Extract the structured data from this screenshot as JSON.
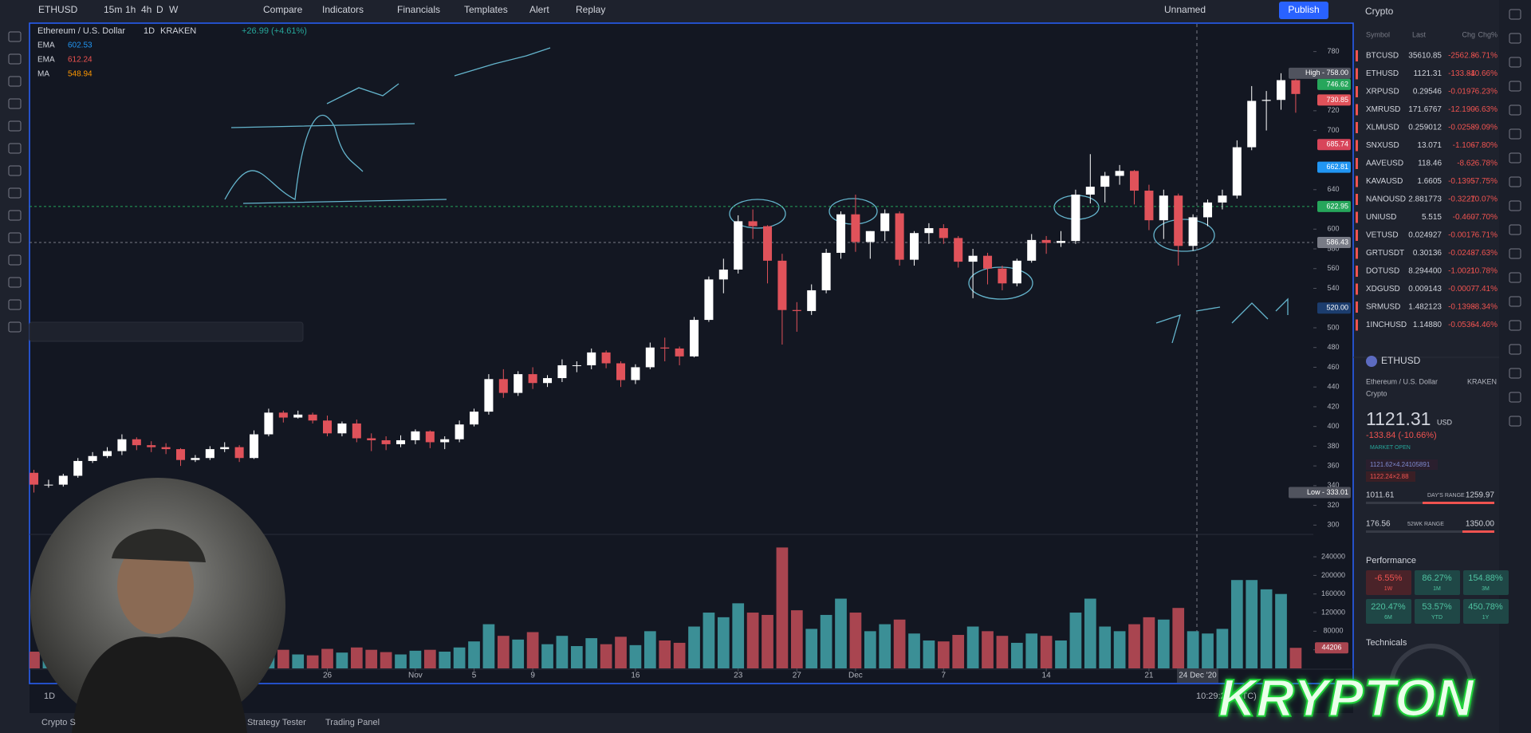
{
  "toolbar": {
    "symbol": "ETHUSD",
    "intervals": [
      "15m",
      "1h",
      "4h",
      "D",
      "W"
    ],
    "compare": "Compare",
    "indicators": "Indicators",
    "financials": "Financials",
    "templates": "Templates",
    "alert": "Alert",
    "replay": "Replay",
    "layout": "Unnamed",
    "publish": "Publish"
  },
  "chart_data": {
    "type": "candlestick",
    "title": "Ethereum / U.S. Dollar",
    "interval": "1D",
    "exchange": "KRAKEN",
    "change": "+26.99 (+4.61%)",
    "indicators": [
      {
        "name": "EMA",
        "value": 602.53,
        "color": "#2196f3"
      },
      {
        "name": "EMA",
        "value": 612.24,
        "color": "#ef5350"
      },
      {
        "name": "MA",
        "value": 548.94,
        "color": "#ff9800"
      }
    ],
    "up_color": "#ffffff",
    "down_color": "#e0525a",
    "volume_up_color": "#3b8f96",
    "volume_down_color": "#a94550",
    "xlim": [
      -0.3,
      87.2
    ],
    "xticks": [
      {
        "value": 20,
        "label": "26"
      },
      {
        "value": 26,
        "label": "Nov"
      },
      {
        "value": 30,
        "label": "5"
      },
      {
        "value": 34,
        "label": "9"
      },
      {
        "value": 41,
        "label": "16"
      },
      {
        "value": 48,
        "label": "23"
      },
      {
        "value": 52,
        "label": "27"
      },
      {
        "value": 56,
        "label": "Dec"
      },
      {
        "value": 62,
        "label": "7"
      },
      {
        "value": 69,
        "label": "14"
      },
      {
        "value": 76,
        "label": "21"
      }
    ],
    "ylim": [
      293,
      808
    ],
    "yticks": [
      300,
      320,
      340,
      360,
      380,
      400,
      420,
      440,
      460,
      480,
      500,
      540,
      560,
      580,
      600,
      640,
      700,
      720,
      780
    ],
    "y2lim": [
      0,
      283000
    ],
    "y2ticks": [
      40000,
      80000,
      120000,
      160000,
      200000,
      240000
    ],
    "candles": [
      [
        353,
        356,
        333.01,
        341
      ],
      [
        341,
        346,
        338,
        341
      ],
      [
        341,
        352,
        339,
        350
      ],
      [
        350,
        368,
        348,
        365
      ],
      [
        365,
        374,
        363,
        370
      ],
      [
        370,
        379,
        368,
        375
      ],
      [
        375,
        392,
        371,
        387
      ],
      [
        387,
        389,
        376,
        381
      ],
      [
        381,
        385,
        374,
        379
      ],
      [
        379,
        383,
        372,
        377
      ],
      [
        377,
        378,
        360,
        366
      ],
      [
        366,
        371,
        364,
        368
      ],
      [
        368,
        380,
        366,
        377
      ],
      [
        377,
        384,
        374,
        379
      ],
      [
        379,
        381,
        364,
        368
      ],
      [
        368,
        396,
        367,
        392
      ],
      [
        392,
        418,
        390,
        414
      ],
      [
        414,
        416,
        404,
        409
      ],
      [
        409,
        416,
        408,
        412
      ],
      [
        412,
        414,
        403,
        406
      ],
      [
        406,
        411,
        390,
        393
      ],
      [
        393,
        405,
        390,
        403
      ],
      [
        403,
        407,
        384,
        388
      ],
      [
        388,
        393,
        375,
        386
      ],
      [
        386,
        390,
        376,
        382
      ],
      [
        382,
        391,
        379,
        386
      ],
      [
        386,
        397,
        382,
        395
      ],
      [
        395,
        396,
        378,
        384
      ],
      [
        384,
        390,
        377,
        387
      ],
      [
        387,
        406,
        384,
        402
      ],
      [
        402,
        418,
        400,
        415
      ],
      [
        415,
        453,
        412,
        448
      ],
      [
        448,
        458,
        429,
        434
      ],
      [
        434,
        456,
        431,
        453
      ],
      [
        453,
        460,
        438,
        444
      ],
      [
        444,
        452,
        440,
        449
      ],
      [
        449,
        468,
        445,
        462
      ],
      [
        462,
        466,
        455,
        462
      ],
      [
        462,
        479,
        458,
        475
      ],
      [
        475,
        477,
        459,
        464
      ],
      [
        464,
        466,
        440,
        447
      ],
      [
        447,
        463,
        443,
        460
      ],
      [
        460,
        485,
        458,
        480
      ],
      [
        480,
        490,
        466,
        479
      ],
      [
        479,
        481,
        462,
        471
      ],
      [
        471,
        511,
        470,
        508
      ],
      [
        508,
        552,
        506,
        549
      ],
      [
        549,
        570,
        535,
        559
      ],
      [
        559,
        614,
        555,
        608
      ],
      [
        608,
        620,
        590,
        603
      ],
      [
        603,
        604,
        545,
        568
      ],
      [
        568,
        575,
        483,
        518
      ],
      [
        518,
        526,
        496,
        517
      ],
      [
        517,
        544,
        513,
        538
      ],
      [
        538,
        580,
        535,
        576
      ],
      [
        576,
        618,
        570,
        615
      ],
      [
        615,
        635,
        577,
        587
      ],
      [
        587,
        598,
        570,
        598
      ],
      [
        598,
        620,
        588,
        616
      ],
      [
        616,
        618,
        563,
        569
      ],
      [
        569,
        598,
        563,
        596
      ],
      [
        596,
        606,
        585,
        601
      ],
      [
        601,
        605,
        585,
        591
      ],
      [
        591,
        593,
        561,
        567
      ],
      [
        567,
        580,
        530,
        573
      ],
      [
        573,
        576,
        544,
        560
      ],
      [
        560,
        563,
        538,
        545
      ],
      [
        545,
        570,
        542,
        568
      ],
      [
        568,
        595,
        566,
        589
      ],
      [
        589,
        593,
        575,
        586
      ],
      [
        586,
        598,
        582,
        588
      ],
      [
        588,
        640,
        585,
        635
      ],
      [
        635,
        676,
        626,
        643
      ],
      [
        643,
        658,
        627,
        654
      ],
      [
        654,
        665,
        645,
        659
      ],
      [
        659,
        660,
        625,
        639
      ],
      [
        639,
        645,
        599,
        609
      ],
      [
        609,
        640,
        590,
        634
      ],
      [
        634,
        636,
        563,
        583
      ],
      [
        583,
        615,
        578,
        612
      ],
      [
        612,
        630,
        603,
        627
      ],
      [
        627,
        640,
        620,
        634
      ],
      [
        634,
        690,
        631,
        683
      ],
      [
        683,
        745,
        680,
        730
      ],
      [
        730,
        740,
        700,
        731
      ],
      [
        731,
        758,
        721,
        751
      ],
      [
        751,
        752,
        718,
        737
      ]
    ],
    "volumes": [
      36000,
      28000,
      35000,
      52000,
      41000,
      30000,
      45000,
      38000,
      33000,
      30000,
      42000,
      25000,
      28000,
      30000,
      36000,
      48000,
      60000,
      40000,
      30000,
      28000,
      42000,
      34000,
      45000,
      40000,
      35000,
      30000,
      38000,
      40000,
      36000,
      45000,
      58000,
      95000,
      70000,
      62000,
      78000,
      52000,
      70000,
      48000,
      65000,
      52000,
      68000,
      50000,
      80000,
      60000,
      55000,
      90000,
      120000,
      110000,
      140000,
      120000,
      115000,
      260000,
      125000,
      85000,
      115000,
      150000,
      120000,
      80000,
      95000,
      105000,
      75000,
      60000,
      58000,
      72000,
      90000,
      80000,
      70000,
      55000,
      75000,
      70000,
      60000,
      120000,
      150000,
      90000,
      80000,
      95000,
      110000,
      105000,
      130000,
      80000,
      75000,
      85000,
      190000,
      190000,
      170000,
      160000,
      44206
    ],
    "price_labels": [
      {
        "value": 758,
        "label": "High - 758.00",
        "color": "#50535e"
      },
      {
        "value": 746.62,
        "label": "746.62",
        "color": "#26a65b"
      },
      {
        "value": 730.85,
        "label": "730.85",
        "color": "#e0525a"
      },
      {
        "value": 685.74,
        "label": "685.74",
        "color": "#d8455a"
      },
      {
        "value": 662.81,
        "label": "662.81",
        "color": "#2196f3"
      },
      {
        "value": 622.95,
        "label": "622.95",
        "color": "#26a65b"
      },
      {
        "value": 586.43,
        "label": "586.43",
        "color": "#787b86"
      },
      {
        "value": 520,
        "label": "520.00",
        "color": "#1c3d6e"
      },
      {
        "value": 333.01,
        "label": "Low - 333.01",
        "color": "#50535e"
      }
    ],
    "crosshair_label": "24 Dec '20"
  },
  "watchlist": {
    "title": "Crypto",
    "columns": [
      "Symbol",
      "Last",
      "Chg",
      "Chg%"
    ],
    "rows": [
      [
        "BTCUSD",
        "35610.85",
        "-2562.8",
        "-6.71%"
      ],
      [
        "ETHUSD",
        "1121.31",
        "-133.84",
        "-10.66%"
      ],
      [
        "XRPUSD",
        "0.29546",
        "-0.0197",
        "-6.23%"
      ],
      [
        "XMRUSD",
        "171.6767",
        "-12.190",
        "-6.63%"
      ],
      [
        "XLMUSD",
        "0.259012",
        "-0.0258",
        "-9.09%"
      ],
      [
        "SNXUSD",
        "13.071",
        "-1.106",
        "-7.80%"
      ],
      [
        "AAVEUSD",
        "118.46",
        "-8.62",
        "-6.78%"
      ],
      [
        "KAVAUSD",
        "1.6605",
        "-0.1395",
        "-7.75%"
      ],
      [
        "NANOUSD",
        "2.881773",
        "-0.3227",
        "-10.07%"
      ],
      [
        "UNIUSD",
        "5.515",
        "-0.460",
        "-7.70%"
      ],
      [
        "VETUSD",
        "0.024927",
        "-0.0017",
        "-6.71%"
      ],
      [
        "GRTUSDT",
        "0.30136",
        "-0.0248",
        "-7.63%"
      ],
      [
        "DOTUSD",
        "8.294400",
        "-1.0021",
        "-10.78%"
      ],
      [
        "XDGUSD",
        "0.009143",
        "-0.0007",
        "-7.41%"
      ],
      [
        "SRMUSD",
        "1.482123",
        "-0.1398",
        "-8.34%"
      ],
      [
        "1INCHUSD",
        "1.14880",
        "-0.0536",
        "-4.46%"
      ]
    ]
  },
  "details": {
    "symbol": "ETHUSD",
    "name": "Ethereum / U.S. Dollar",
    "exchange": "KRAKEN",
    "category": "Crypto",
    "price": "1121.31",
    "currency": "USD",
    "change": "-133.84 (-10.66%)",
    "status": "MARKET OPEN",
    "bid": "1121.62×4.24105891",
    "ask": "1122.24×2.88",
    "day_range": {
      "label": "DAY'S RANGE",
      "low": "1011.61",
      "high": "1259.97"
    },
    "year_range": {
      "label": "52WK RANGE",
      "low": "176.56",
      "high": "1350.00"
    },
    "performance": {
      "title": "Performance",
      "tiles": [
        {
          "value": "-6.55%",
          "period": "1W"
        },
        {
          "value": "86.27%",
          "period": "1M"
        },
        {
          "value": "154.88%",
          "period": "3M"
        },
        {
          "value": "220.47%",
          "period": "6M"
        },
        {
          "value": "53.57%",
          "period": "YTD"
        },
        {
          "value": "450.78%",
          "period": "1Y"
        }
      ]
    },
    "technicals": "Technicals"
  },
  "bottom_bar": {
    "tabs": [
      "Crypto S",
      "Strategy Tester",
      "Trading Panel"
    ],
    "interval": "1D",
    "time": "10:29:22 (UTC)"
  },
  "overlay": {
    "brand": "KRYPTON"
  }
}
